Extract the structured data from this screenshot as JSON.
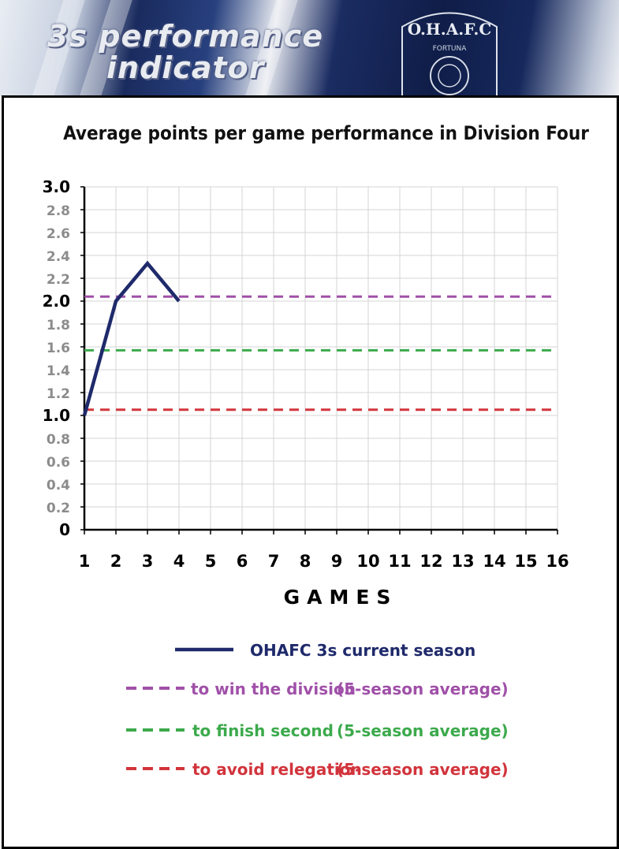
{
  "banner": {
    "title_line1": "3s performance",
    "title_line2": "indicator",
    "crest_text": "O.H.A.F.C",
    "crest_motto": "FORTUNA"
  },
  "colors": {
    "current": "#1f2a6b",
    "win": "#a050a8",
    "second": "#3caa4c",
    "relegation": "#d2343c",
    "grid": "#d4d4d4"
  },
  "chart_data": {
    "type": "line",
    "title": "Average points per game performance in Division Four",
    "xlabel": "GAMES",
    "ylabel": "",
    "xlim": [
      1,
      16
    ],
    "ylim": [
      0,
      3.0
    ],
    "x_ticks": [
      "1",
      "2",
      "3",
      "4",
      "5",
      "6",
      "7",
      "8",
      "9",
      "10",
      "11",
      "12",
      "13",
      "14",
      "15",
      "16"
    ],
    "y_ticks": [
      "0",
      "0.2",
      "0.4",
      "0.6",
      "0.8",
      "1.0",
      "1.2",
      "1.4",
      "1.6",
      "1.8",
      "2.0",
      "2.2",
      "2.4",
      "2.6",
      "2.8",
      "3.0"
    ],
    "y_ticks_bold": [
      "0",
      "1.0",
      "2.0",
      "3.0"
    ],
    "grid": true,
    "series": [
      {
        "name": "OHAFC 3s current season",
        "style": "solid",
        "color": "#1f2a6b",
        "x": [
          1,
          2,
          3,
          4
        ],
        "y": [
          1.0,
          2.0,
          2.33,
          2.0
        ]
      },
      {
        "name": "to win the division",
        "note": "(5-season average)",
        "style": "dashed",
        "color": "#a050a8",
        "x": [
          1,
          16
        ],
        "y": [
          2.04,
          2.04
        ]
      },
      {
        "name": "to finish second",
        "note": "(5-season average)",
        "style": "dashed",
        "color": "#3caa4c",
        "x": [
          1,
          16
        ],
        "y": [
          1.57,
          1.57
        ]
      },
      {
        "name": "to avoid relegation",
        "note": "(5-season average)",
        "style": "dashed",
        "color": "#d2343c",
        "x": [
          1,
          16
        ],
        "y": [
          1.05,
          1.05
        ]
      }
    ]
  }
}
